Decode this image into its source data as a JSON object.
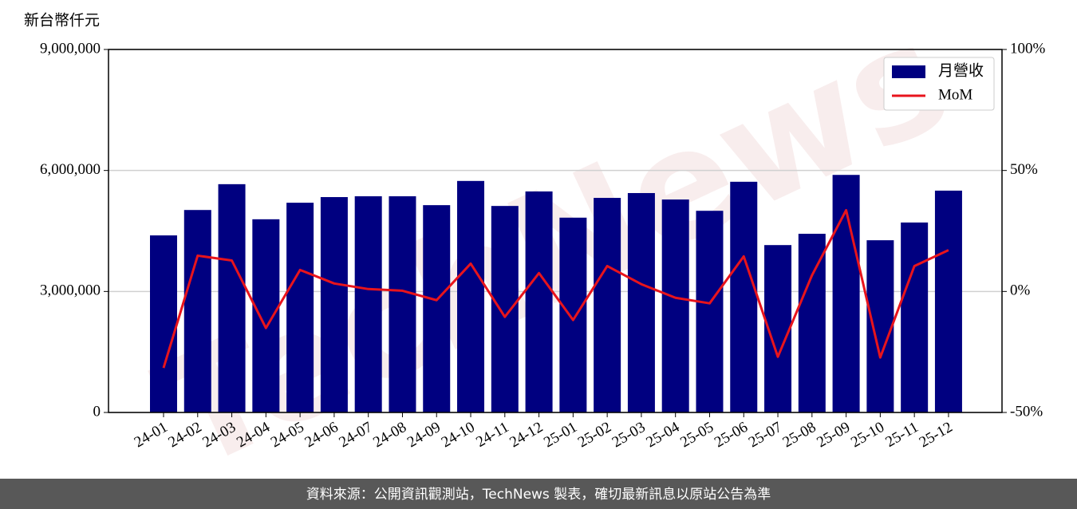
{
  "chart_data": {
    "type": "bar",
    "y_label": "新台幣仟元",
    "watermark": "TechNews",
    "source": "資料來源：公開資訊觀測站，TechNews 製表，確切最新訊息以原站公告為準",
    "categories": [
      "24-01",
      "24-02",
      "24-03",
      "24-04",
      "24-05",
      "24-06",
      "24-07",
      "24-08",
      "24-09",
      "24-10",
      "24-11",
      "24-12",
      "25-01",
      "25-02",
      "25-03",
      "25-04",
      "25-05",
      "25-06",
      "25-07",
      "25-08",
      "25-09",
      "25-10",
      "25-11",
      "25-12"
    ],
    "series": [
      {
        "name": "月營收",
        "type": "bar",
        "color": "#000080",
        "axis": "y",
        "values": [
          4390000,
          5020000,
          5660000,
          4790000,
          5200000,
          5340000,
          5360000,
          5360000,
          5140000,
          5740000,
          5120000,
          5480000,
          4830000,
          5320000,
          5440000,
          5280000,
          5000000,
          5720000,
          4150000,
          4430000,
          5890000,
          4270000,
          4710000,
          5500000
        ]
      },
      {
        "name": "MoM",
        "type": "line",
        "color": "#e8141c",
        "axis": "y2",
        "values": [
          -31.6,
          14.8,
          12.8,
          -15.1,
          8.9,
          3.3,
          1.0,
          0.3,
          -3.6,
          11.5,
          -10.5,
          7.6,
          -11.8,
          10.5,
          3.0,
          -2.6,
          -4.9,
          14.5,
          -27.0,
          6.7,
          33.6,
          -27.3,
          10.5,
          17.1
        ]
      }
    ],
    "ylim": [
      0,
      9000000
    ],
    "yticks": [
      0,
      {
        "value": 3000000,
        "label": "3,000,000"
      },
      {
        "value": 6000000,
        "label": "6,000,000"
      },
      {
        "value": 9000000,
        "label": "9,000,000"
      }
    ],
    "y2lim": [
      -50,
      100
    ],
    "y2ticks": [
      {
        "value": -50,
        "label": "-50%"
      },
      {
        "value": 0,
        "label": "0%"
      },
      {
        "value": 50,
        "label": "50%"
      },
      {
        "value": 100,
        "label": "100%"
      }
    ],
    "grid": true,
    "legend": "upper right"
  }
}
